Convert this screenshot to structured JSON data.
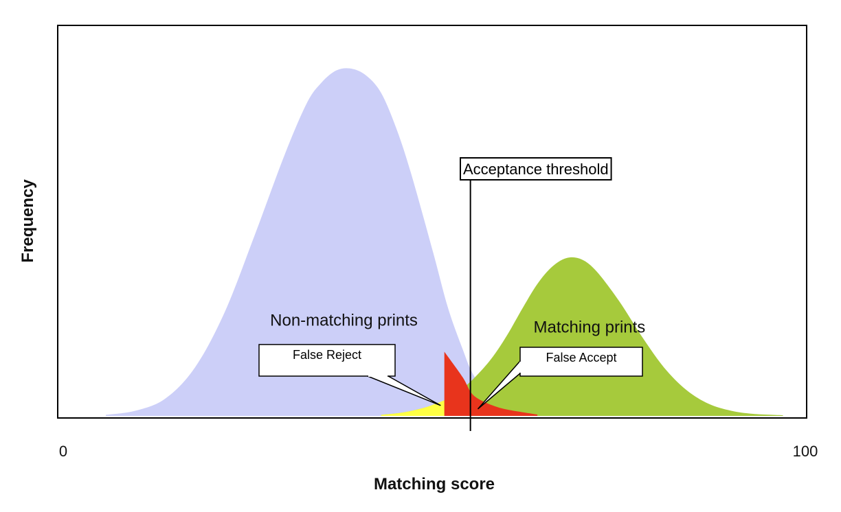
{
  "chart_data": {
    "type": "area",
    "title": "",
    "xlabel": "Matching score",
    "ylabel": "Frequency",
    "xlim": [
      0,
      100
    ],
    "ylim": [
      0,
      1
    ],
    "x_tick_labels": [
      {
        "x": 0,
        "label": "0"
      },
      {
        "x": 100,
        "label": "100"
      }
    ],
    "threshold": {
      "x": 55,
      "label": "Acceptance threshold"
    },
    "series": [
      {
        "name": "Non-matching prints",
        "color": "#cccff8",
        "x": [
          6,
          10,
          14,
          18,
          22,
          26,
          30,
          33,
          35,
          37,
          39,
          41,
          43,
          45,
          47,
          50,
          52,
          54,
          55,
          56,
          58,
          60,
          64
        ],
        "y": [
          0.003,
          0.015,
          0.05,
          0.14,
          0.3,
          0.52,
          0.75,
          0.9,
          0.96,
          0.995,
          1.0,
          0.98,
          0.93,
          0.83,
          0.7,
          0.47,
          0.31,
          0.19,
          0.135,
          0.1,
          0.055,
          0.028,
          0.005
        ]
      },
      {
        "name": "Matching prints",
        "color": "#a6ca3c",
        "x": [
          43,
          46,
          49,
          51.5,
          54,
          56,
          58,
          60,
          62,
          64,
          66,
          68,
          70,
          72,
          75,
          78,
          81,
          84,
          87,
          90,
          93,
          97
        ],
        "y": [
          0.003,
          0.01,
          0.025,
          0.045,
          0.08,
          0.12,
          0.17,
          0.235,
          0.31,
          0.38,
          0.43,
          0.455,
          0.45,
          0.415,
          0.33,
          0.23,
          0.14,
          0.075,
          0.035,
          0.015,
          0.006,
          0.002
        ]
      }
    ],
    "regions": [
      {
        "name": "False Reject",
        "color": "#ffff44",
        "x": [
          43,
          46,
          49,
          51.5
        ],
        "y": [
          0.003,
          0.01,
          0.025,
          0.045
        ]
      },
      {
        "name": "False Accept",
        "color": "#e8341c",
        "x": [
          51.5,
          52,
          54,
          55,
          56,
          58,
          60,
          64
        ],
        "y": [
          0.185,
          0.17,
          0.11,
          0.07,
          0.05,
          0.03,
          0.018,
          0.004
        ]
      }
    ],
    "annotations": [
      {
        "label": "Non-matching prints",
        "x": 38,
        "y": 0.26
      },
      {
        "label": "Matching prints",
        "x": 71,
        "y": 0.24
      },
      {
        "label": "False Reject",
        "x": 51,
        "y": 0.03,
        "anchor": "left-side"
      },
      {
        "label": "False Accept",
        "x": 56,
        "y": 0.02,
        "anchor": "right-side"
      }
    ],
    "grid": false,
    "legend": "none"
  }
}
